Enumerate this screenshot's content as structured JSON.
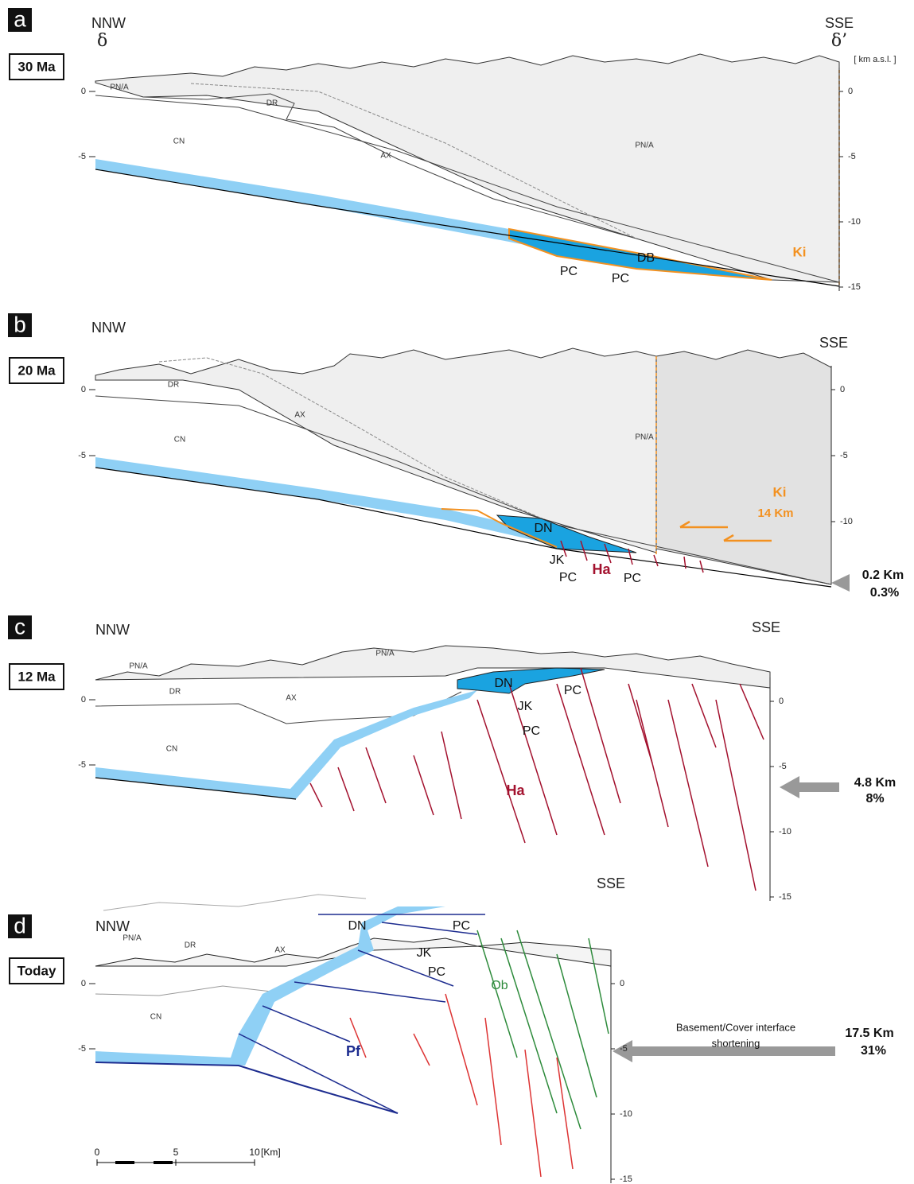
{
  "panels": [
    {
      "letter": "a",
      "age": "30 Ma",
      "nnw": "NNW",
      "nnw_symbol": "δ",
      "sse": "SSE",
      "sse_symbol": "δ’",
      "unit": "[ km a.s.l. ]",
      "left_ticks": [
        0,
        -5
      ],
      "right_ticks": [
        0,
        -5,
        -10,
        -15
      ],
      "labels": [
        "PN/A",
        "DR",
        "CN",
        "AX",
        "PN/A",
        "DB",
        "PC",
        "PC",
        "Ki"
      ]
    },
    {
      "letter": "b",
      "age": "20 Ma",
      "nnw": "NNW",
      "sse": "SSE",
      "left_ticks": [
        0,
        -5
      ],
      "right_ticks": [
        0,
        -5,
        -10
      ],
      "labels": [
        "DR",
        "AX",
        "CN",
        "PN/A",
        "DN",
        "JK",
        "PC",
        "Ha",
        "PC",
        "Ki",
        "14 Km",
        "0.2 Km",
        "0.3%"
      ]
    },
    {
      "letter": "c",
      "age": "12 Ma",
      "nnw": "NNW",
      "sse": "SSE",
      "left_ticks": [
        0,
        -5
      ],
      "right_ticks": [
        0,
        -5,
        -10,
        -15
      ],
      "labels": [
        "PN/A",
        "PN/A",
        "DR",
        "AX",
        "CN",
        "DN",
        "PC",
        "JK",
        "PC",
        "Ha",
        "4.8 Km",
        "8%"
      ]
    },
    {
      "letter": "d",
      "age": "Today",
      "nnw": "NNW",
      "sse": "SSE",
      "left_ticks": [
        0,
        -5
      ],
      "right_ticks": [
        0,
        -5,
        -10,
        -15
      ],
      "labels": [
        "PN/A",
        "DR",
        "AX",
        "CN",
        "DN",
        "PC",
        "JK",
        "PC",
        "Ob",
        "Pf",
        "Basement/Cover interface",
        "shortening",
        "17.5 Km",
        "31%"
      ]
    }
  ],
  "scale_bar": {
    "ticks": [
      0,
      5,
      10
    ],
    "unit": "[Km]"
  }
}
